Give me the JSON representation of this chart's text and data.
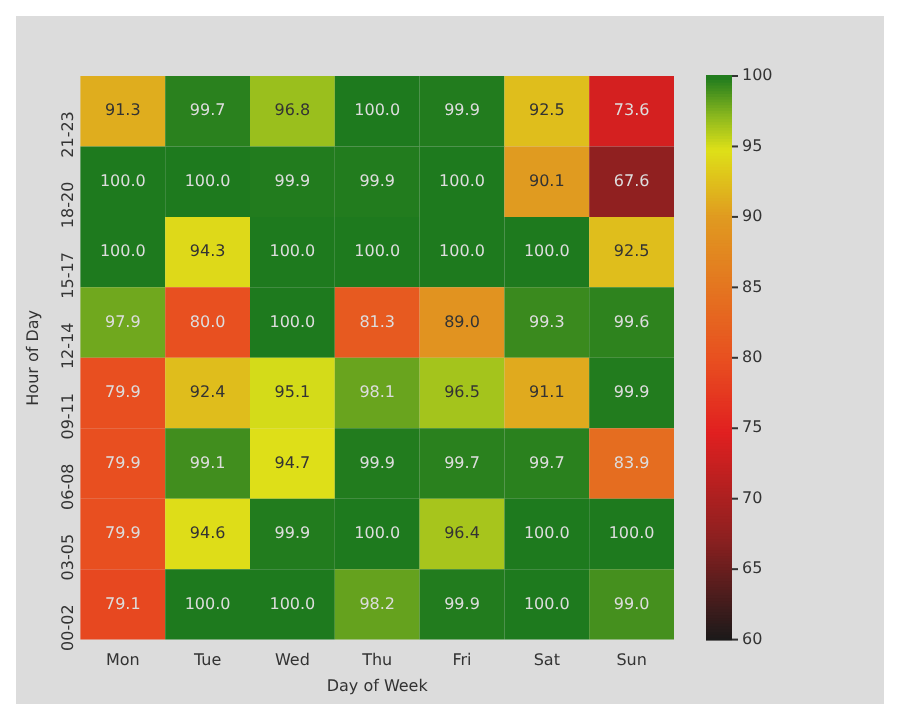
{
  "chart_data": {
    "type": "heatmap",
    "xlabel": "Day of Week",
    "ylabel": "Hour of Day",
    "categories": [
      "Mon",
      "Tue",
      "Wed",
      "Thu",
      "Fri",
      "Sat",
      "Sun"
    ],
    "y_categories": [
      "21-23",
      "18-20",
      "15-17",
      "12-14",
      "09-11",
      "06-08",
      "03-05",
      "00-02"
    ],
    "cells": [
      [
        91.3,
        99.7,
        96.8,
        100.0,
        99.9,
        92.5,
        73.6
      ],
      [
        100.0,
        100.0,
        99.9,
        99.9,
        100.0,
        90.1,
        67.6
      ],
      [
        100.0,
        94.3,
        100.0,
        100.0,
        100.0,
        100.0,
        92.5
      ],
      [
        97.9,
        80.0,
        100.0,
        81.3,
        89.0,
        99.3,
        99.6
      ],
      [
        79.9,
        92.4,
        95.1,
        98.1,
        96.5,
        91.1,
        99.9
      ],
      [
        79.9,
        99.1,
        94.7,
        99.9,
        99.7,
        99.7,
        83.9
      ],
      [
        79.9,
        94.6,
        99.9,
        100.0,
        96.4,
        100.0,
        100.0
      ],
      [
        79.1,
        100.0,
        100.0,
        98.2,
        99.9,
        100.0,
        99.0
      ]
    ],
    "cell_labels": [
      [
        "91.3",
        "99.7",
        "96.8",
        "100.0",
        "99.9",
        "92.5",
        "73.6"
      ],
      [
        "100.0",
        "100.0",
        "99.9",
        "99.9",
        "100.0",
        "90.1",
        "67.6"
      ],
      [
        "100.0",
        "94.3",
        "100.0",
        "100.0",
        "100.0",
        "100.0",
        "92.5"
      ],
      [
        "97.9",
        "80.0",
        "100.0",
        "81.3",
        "89.0",
        "99.3",
        "99.6"
      ],
      [
        "79.9",
        "92.4",
        "95.1",
        "98.1",
        "96.5",
        "91.1",
        "99.9"
      ],
      [
        "79.9",
        "99.1",
        "94.7",
        "99.9",
        "99.7",
        "99.7",
        "83.9"
      ],
      [
        "79.9",
        "94.6",
        "99.9",
        "100.0",
        "96.4",
        "100.0",
        "100.0"
      ],
      [
        "79.1",
        "100.0",
        "100.0",
        "98.2",
        "99.9",
        "100.0",
        "99.0"
      ]
    ],
    "clim": [
      60,
      100
    ],
    "cticks": [
      60,
      65,
      70,
      75,
      80,
      85,
      90,
      95,
      100
    ],
    "data_labels": true
  }
}
